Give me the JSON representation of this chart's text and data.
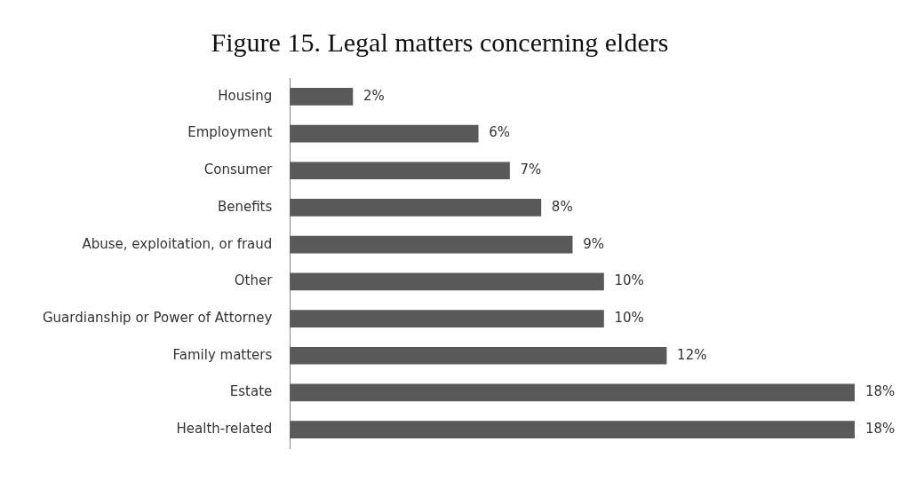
{
  "chart_data": {
    "type": "bar",
    "title": "Figure 15. Legal matters concerning elders",
    "orientation": "horizontal",
    "categories": [
      "Housing",
      "Employment",
      "Consumer",
      "Benefits",
      "Abuse, exploitation, or fraud",
      "Other",
      "Guardianship or Power of Attorney",
      "Family matters",
      "Estate",
      "Health-related"
    ],
    "values": [
      2,
      6,
      7,
      8,
      9,
      10,
      10,
      12,
      18,
      18
    ],
    "value_labels": [
      "2%",
      "6%",
      "7%",
      "8%",
      "9%",
      "10%",
      "10%",
      "12%",
      "18%",
      "18%"
    ],
    "color": "#595959",
    "legend": false
  }
}
